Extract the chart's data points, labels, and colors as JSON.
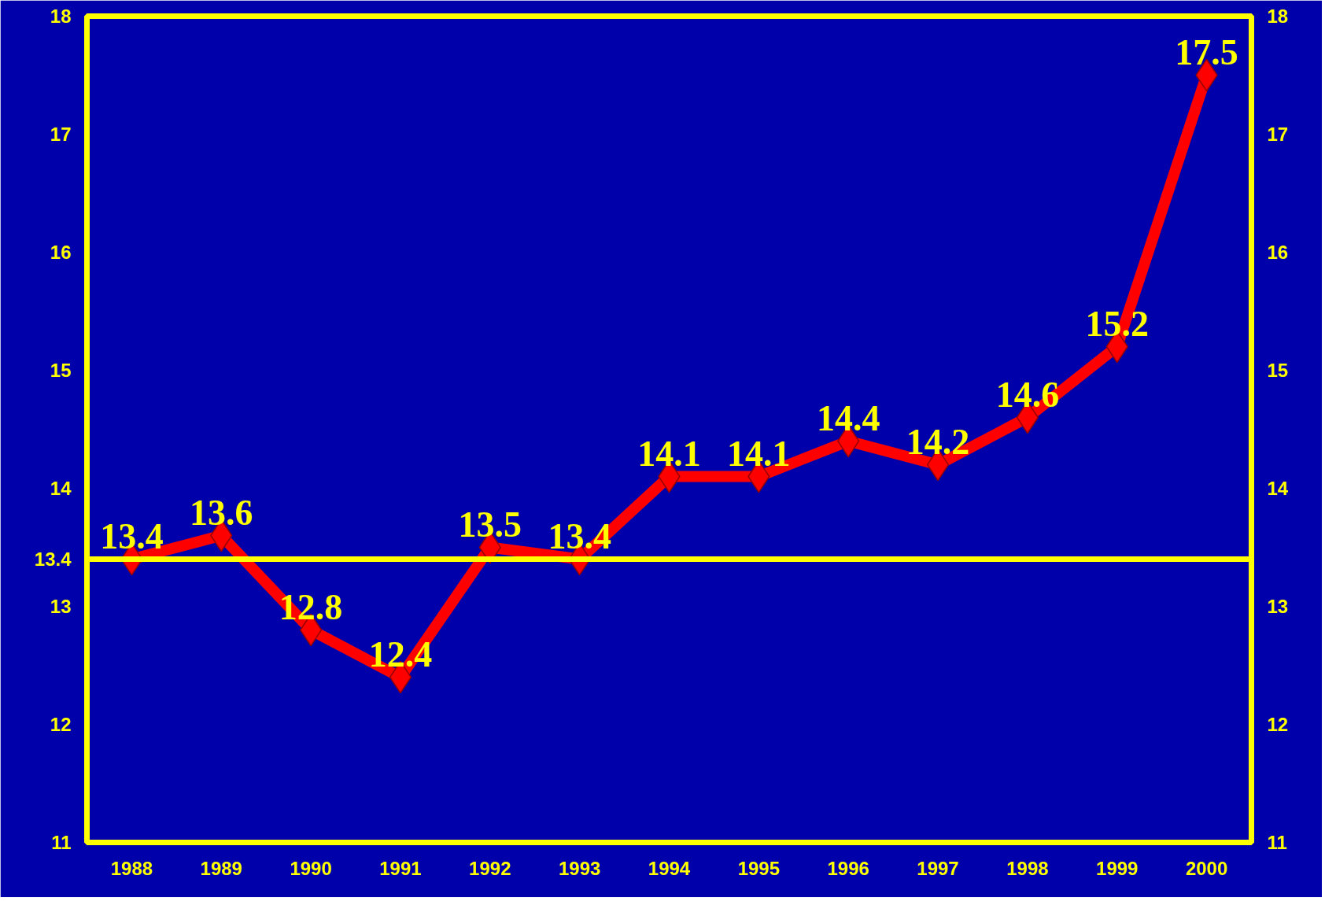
{
  "chart_data": {
    "type": "line",
    "categories": [
      "1988",
      "1989",
      "1990",
      "1991",
      "1992",
      "1993",
      "1994",
      "1995",
      "1996",
      "1997",
      "1998",
      "1999",
      "2000"
    ],
    "series": [
      {
        "color": "#ff0000",
        "values": [
          13.4,
          13.6,
          12.8,
          12.4,
          13.5,
          13.4,
          14.1,
          14.1,
          14.4,
          14.2,
          14.6,
          15.2,
          17.5
        ]
      }
    ],
    "marker": "diamond",
    "data_labels": true,
    "grid": false,
    "ylim": [
      11,
      18
    ],
    "yticks": [
      11,
      12,
      13,
      13.4,
      14,
      15,
      16,
      17,
      18
    ],
    "y2lim": [
      11,
      18
    ],
    "y2ticks": [
      11,
      12,
      13,
      14,
      15,
      16,
      17,
      18
    ],
    "ref_lines": [
      {
        "axis": "y",
        "value": 13.4,
        "color": "#ffff00"
      }
    ]
  }
}
